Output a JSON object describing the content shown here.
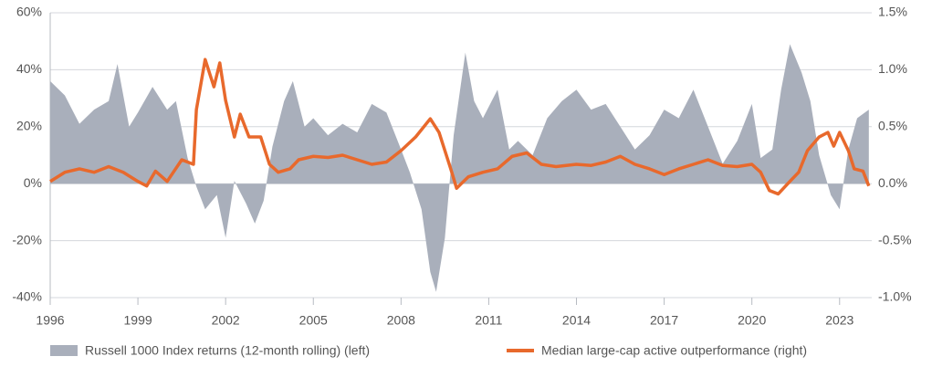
{
  "chart_data": {
    "type": "area-line",
    "series": [
      {
        "name": "Russell 1000 Index returns (12-month rolling) (left)",
        "color": "#a9afbb",
        "type": "area",
        "axis": "y",
        "x": [
          1996.0,
          1996.5,
          1997.0,
          1997.5,
          1998.0,
          1998.3,
          1998.7,
          1999.0,
          1999.5,
          2000.0,
          2000.3,
          2000.7,
          2001.0,
          2001.3,
          2001.7,
          2002.0,
          2002.3,
          2002.7,
          2003.0,
          2003.3,
          2003.6,
          2004.0,
          2004.3,
          2004.7,
          2005.0,
          2005.5,
          2006.0,
          2006.5,
          2007.0,
          2007.5,
          2008.0,
          2008.3,
          2008.7,
          2009.0,
          2009.2,
          2009.5,
          2009.8,
          2010.2,
          2010.5,
          2010.8,
          2011.3,
          2011.7,
          2012.0,
          2012.5,
          2013.0,
          2013.5,
          2014.0,
          2014.5,
          2015.0,
          2015.5,
          2016.0,
          2016.5,
          2017.0,
          2017.5,
          2018.0,
          2018.5,
          2019.0,
          2019.5,
          2020.0,
          2020.3,
          2020.7,
          2021.0,
          2021.3,
          2021.7,
          2022.0,
          2022.3,
          2022.7,
          2023.0,
          2023.3,
          2023.6,
          2024.0
        ],
        "values": [
          36,
          31,
          21,
          26,
          29,
          42,
          20,
          25,
          34,
          26,
          29,
          9,
          -1,
          -9,
          -4,
          -19,
          1,
          -7,
          -14,
          -6,
          13,
          29,
          36,
          20,
          23,
          17,
          21,
          18,
          28,
          25,
          12,
          4,
          -9,
          -31,
          -38,
          -19,
          17,
          46,
          29,
          23,
          33,
          12,
          15,
          10,
          23,
          29,
          33,
          26,
          28,
          20,
          12,
          17,
          26,
          23,
          33,
          20,
          7,
          15,
          28,
          9,
          12,
          33,
          49,
          39,
          29,
          10,
          -4,
          -9,
          12,
          23,
          26
        ]
      },
      {
        "name": "Median large-cap active outperformance (right)",
        "color": "#e8692c",
        "type": "line",
        "axis": "y2",
        "x": [
          1996.0,
          1996.5,
          1997.0,
          1997.5,
          1998.0,
          1998.5,
          1999.0,
          1999.3,
          1999.6,
          2000.0,
          2000.5,
          2000.9,
          2001.0,
          2001.3,
          2001.6,
          2001.8,
          2002.0,
          2002.3,
          2002.5,
          2002.8,
          2003.2,
          2003.5,
          2003.8,
          2004.2,
          2004.5,
          2005.0,
          2005.5,
          2006.0,
          2006.5,
          2007.0,
          2007.5,
          2008.0,
          2008.5,
          2009.0,
          2009.3,
          2009.7,
          2009.9,
          2010.3,
          2010.8,
          2011.3,
          2011.8,
          2012.3,
          2012.8,
          2013.3,
          2014.0,
          2014.5,
          2015.0,
          2015.5,
          2016.0,
          2016.5,
          2017.0,
          2017.5,
          2018.0,
          2018.5,
          2019.0,
          2019.5,
          2020.0,
          2020.3,
          2020.6,
          2020.9,
          2021.3,
          2021.6,
          2021.9,
          2022.3,
          2022.6,
          2022.8,
          2023.0,
          2023.3,
          2023.5,
          2023.8,
          2024.0
        ],
        "values": [
          0.02,
          0.1,
          0.13,
          0.1,
          0.15,
          0.1,
          0.02,
          -0.02,
          0.11,
          0.02,
          0.21,
          0.17,
          0.65,
          1.09,
          0.85,
          1.06,
          0.73,
          0.41,
          0.61,
          0.41,
          0.41,
          0.17,
          0.1,
          0.13,
          0.21,
          0.24,
          0.23,
          0.25,
          0.21,
          0.17,
          0.19,
          0.29,
          0.41,
          0.57,
          0.45,
          0.13,
          -0.04,
          0.06,
          0.1,
          0.13,
          0.24,
          0.27,
          0.17,
          0.15,
          0.17,
          0.16,
          0.19,
          0.24,
          0.17,
          0.13,
          0.08,
          0.13,
          0.17,
          0.21,
          0.16,
          0.15,
          0.17,
          0.1,
          -0.06,
          -0.09,
          0.02,
          0.1,
          0.29,
          0.41,
          0.45,
          0.33,
          0.45,
          0.29,
          0.13,
          0.11,
          -0.02
        ]
      }
    ],
    "xlim": [
      1996,
      2024.1
    ],
    "xticks": [
      1996,
      1999,
      2002,
      2005,
      2008,
      2011,
      2014,
      2017,
      2020,
      2023
    ],
    "ylim": [
      -40,
      60
    ],
    "yticks": [
      {
        "value": -40,
        "label": "-40%"
      },
      {
        "value": -20,
        "label": "-20%"
      },
      {
        "value": 0,
        "label": "0%"
      },
      {
        "value": 20,
        "label": "20%"
      },
      {
        "value": 40,
        "label": "40%"
      },
      {
        "value": 60,
        "label": "60%"
      }
    ],
    "y2lim": [
      -1.0,
      1.5
    ],
    "y2ticks": [
      {
        "value": -1.0,
        "label": "-1.0%"
      },
      {
        "value": -0.5,
        "label": "-0.5%"
      },
      {
        "value": 0.0,
        "label": "0.0%"
      },
      {
        "value": 0.5,
        "label": "0.5%"
      },
      {
        "value": 1.0,
        "label": "1.0%"
      },
      {
        "value": 1.5,
        "label": "1.5%"
      }
    ],
    "grid": true
  }
}
